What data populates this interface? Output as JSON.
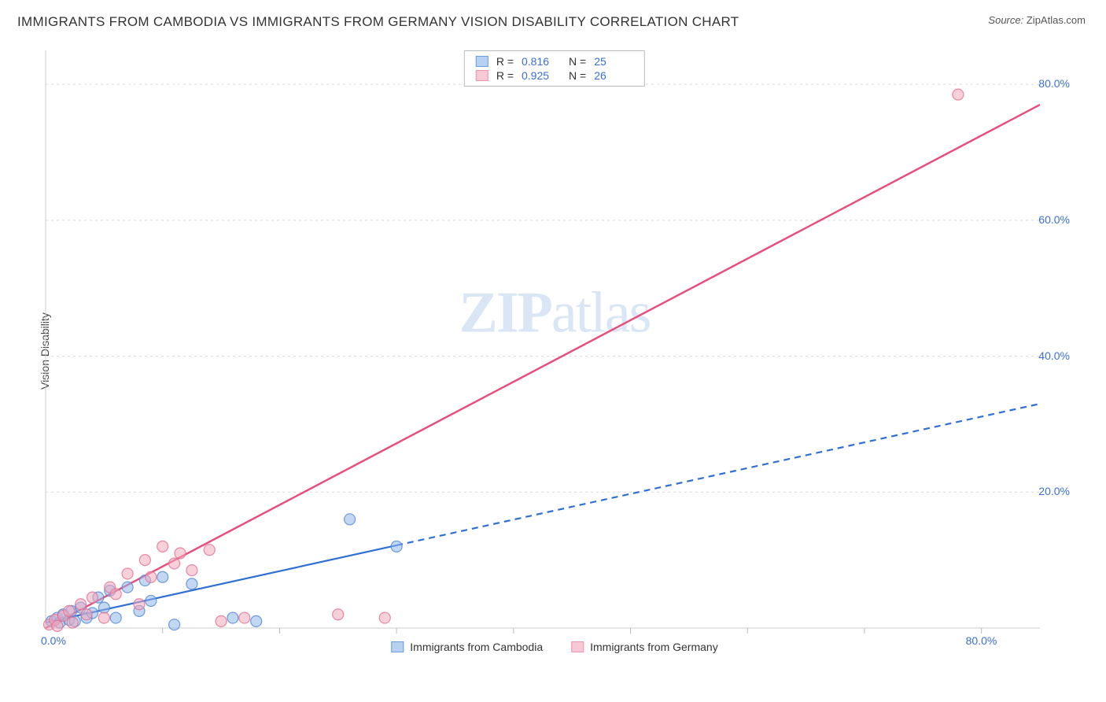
{
  "title": "IMMIGRANTS FROM CAMBODIA VS IMMIGRANTS FROM GERMANY VISION DISABILITY CORRELATION CHART",
  "source_label": "Source:",
  "source_value": "ZipAtlas.com",
  "ylabel": "Vision Disability",
  "watermark": {
    "bold": "ZIP",
    "rest": "atlas"
  },
  "legend_top": {
    "rows": [
      {
        "swatch_fill": "#b7d1f0",
        "swatch_border": "#6a9de0",
        "r_label": "R =",
        "r_value": "0.816",
        "n_label": "N =",
        "n_value": "25"
      },
      {
        "swatch_fill": "#f7c8d5",
        "swatch_border": "#ea94ad",
        "r_label": "R =",
        "r_value": "0.925",
        "n_label": "N =",
        "n_value": "26"
      }
    ]
  },
  "legend_bottom": {
    "items": [
      {
        "swatch_fill": "#b7d1f0",
        "swatch_border": "#6a9de0",
        "label": "Immigrants from Cambodia"
      },
      {
        "swatch_fill": "#f7c8d5",
        "swatch_border": "#ea94ad",
        "label": "Immigrants from Germany"
      }
    ]
  },
  "chart": {
    "type": "scatter",
    "background_color": "#ffffff",
    "grid_color": "#d9d9d9",
    "axis_color": "#cccccc",
    "tick_color": "#bbbbbb",
    "tick_label_color": "#3b6fd6",
    "label_fontsize": 14,
    "title_fontsize": 17,
    "xlim": [
      0,
      85
    ],
    "ylim": [
      0,
      85
    ],
    "x_origin_label": "0.0%",
    "x_max_label": "80.0%",
    "y_grid": [
      {
        "v": 20,
        "label": "20.0%"
      },
      {
        "v": 40,
        "label": "40.0%"
      },
      {
        "v": 60,
        "label": "60.0%"
      },
      {
        "v": 80,
        "label": "80.0%"
      }
    ],
    "x_ticks": [
      10,
      20,
      30,
      40,
      50,
      60,
      70,
      80
    ],
    "marker_radius": 7,
    "marker_opacity": 0.55,
    "series": [
      {
        "name": "cambodia",
        "fill": "#8fb7e8",
        "stroke": "#4f86d6",
        "trend": {
          "solid_to_x": 30,
          "x1": 0,
          "y1": 0.8,
          "x2": 85,
          "y2": 33,
          "dash": "8,6",
          "width": 2.2,
          "color": "#2f6fd6"
        },
        "points": [
          [
            0.5,
            1.0
          ],
          [
            1.0,
            1.5
          ],
          [
            1.2,
            0.8
          ],
          [
            1.5,
            2.0
          ],
          [
            2.0,
            1.2
          ],
          [
            2.2,
            2.5
          ],
          [
            2.5,
            1.0
          ],
          [
            3.0,
            3.0
          ],
          [
            3.5,
            1.5
          ],
          [
            4.0,
            2.2
          ],
          [
            4.5,
            4.5
          ],
          [
            5.0,
            3.0
          ],
          [
            5.5,
            5.5
          ],
          [
            6.0,
            1.5
          ],
          [
            7.0,
            6.0
          ],
          [
            8.0,
            2.5
          ],
          [
            8.5,
            7.0
          ],
          [
            9.0,
            4.0
          ],
          [
            10.0,
            7.5
          ],
          [
            11.0,
            0.5
          ],
          [
            12.5,
            6.5
          ],
          [
            16.0,
            1.5
          ],
          [
            18.0,
            1.0
          ],
          [
            26.0,
            16.0
          ],
          [
            30.0,
            12.0
          ]
        ]
      },
      {
        "name": "germany",
        "fill": "#f3a9bc",
        "stroke": "#e06f92",
        "trend": {
          "solid_to_x": 85,
          "x1": 0,
          "y1": -1.5,
          "x2": 85,
          "y2": 77,
          "dash": null,
          "width": 2.4,
          "color": "#e94b7a"
        },
        "points": [
          [
            0.3,
            0.5
          ],
          [
            0.8,
            1.2
          ],
          [
            1.0,
            0.3
          ],
          [
            1.5,
            1.8
          ],
          [
            2.0,
            2.5
          ],
          [
            2.3,
            0.8
          ],
          [
            3.0,
            3.5
          ],
          [
            3.5,
            2.0
          ],
          [
            4.0,
            4.5
          ],
          [
            5.0,
            1.5
          ],
          [
            5.5,
            6.0
          ],
          [
            6.0,
            5.0
          ],
          [
            7.0,
            8.0
          ],
          [
            8.0,
            3.5
          ],
          [
            8.5,
            10.0
          ],
          [
            9.0,
            7.5
          ],
          [
            10.0,
            12.0
          ],
          [
            11.0,
            9.5
          ],
          [
            11.5,
            11.0
          ],
          [
            12.5,
            8.5
          ],
          [
            14.0,
            11.5
          ],
          [
            15.0,
            1.0
          ],
          [
            17.0,
            1.5
          ],
          [
            25.0,
            2.0
          ],
          [
            29.0,
            1.5
          ],
          [
            78.0,
            78.5
          ]
        ]
      }
    ]
  }
}
